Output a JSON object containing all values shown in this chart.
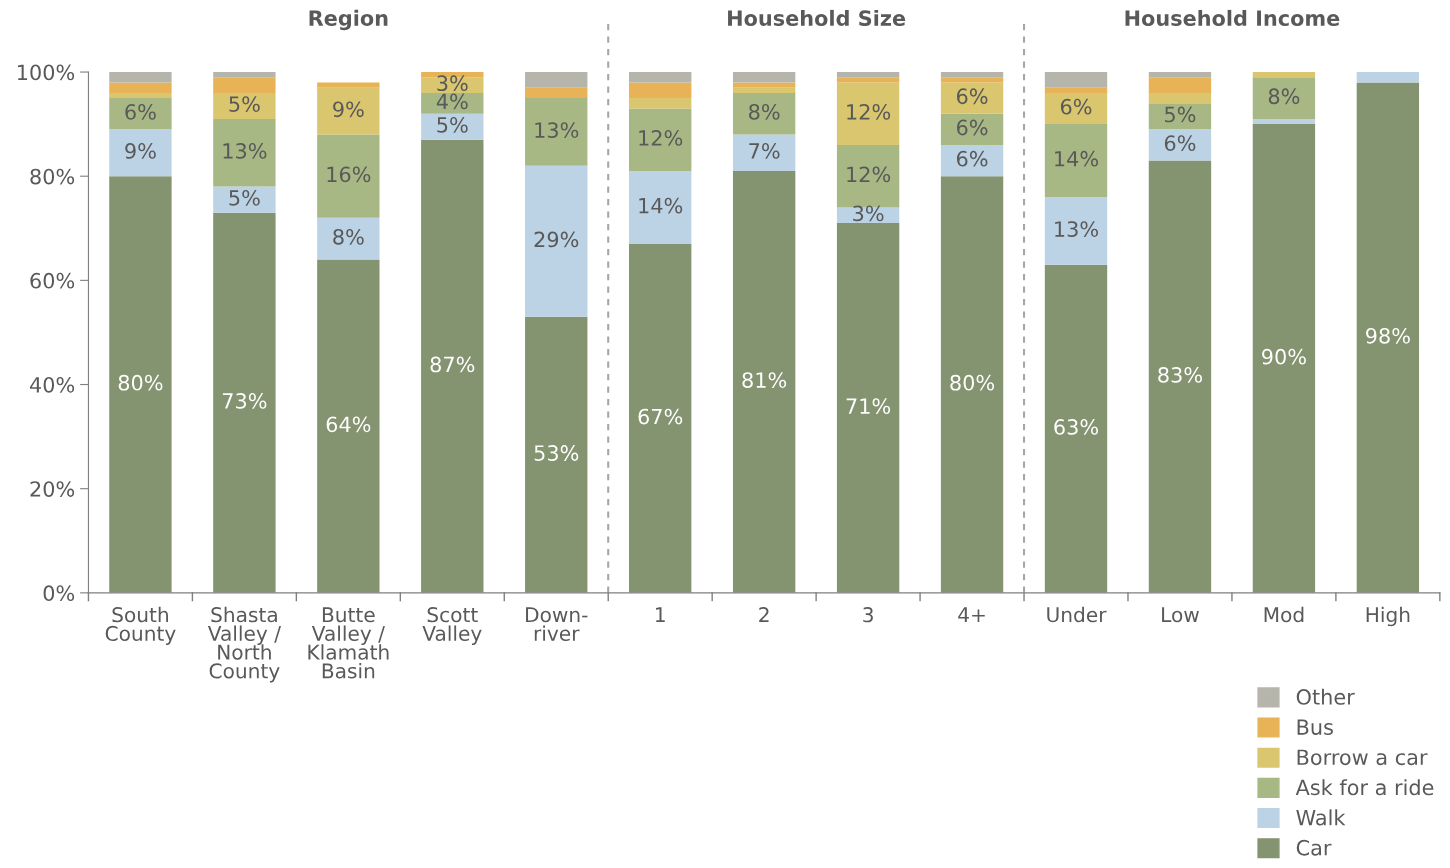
{
  "chart_data": {
    "type": "bar",
    "stacked": true,
    "categories": [
      "South\nCounty",
      "Shasta\nValley /\nNorth\nCounty",
      "Butte\nValley /\nKlamath\nBasin",
      "Scott\nValley",
      "Down-\nriver",
      "1",
      "2",
      "3",
      "4+",
      "Under",
      "Low",
      "Mod",
      "High"
    ],
    "series": [
      {
        "name": "Car",
        "color": "#849370",
        "values": [
          80,
          73,
          64,
          87,
          53,
          67,
          81,
          71,
          80,
          63,
          83,
          90,
          98
        ],
        "value_labels": [
          "80%",
          "73%",
          "64%",
          "87%",
          "53%",
          "67%",
          "81%",
          "71%",
          "80%",
          "63%",
          "83%",
          "90%",
          "98%"
        ]
      },
      {
        "name": "Walk",
        "color": "#bcd3e6",
        "values": [
          9,
          5,
          8,
          5,
          29,
          14,
          7,
          3,
          6,
          13,
          6,
          1,
          2
        ],
        "value_labels": [
          "9%",
          "5%",
          "8%",
          "5%",
          "29%",
          "14%",
          "7%",
          "3%",
          "6%",
          "13%",
          "6%",
          null,
          null
        ]
      },
      {
        "name": "Ask for a ride",
        "color": "#a8b884",
        "values": [
          6,
          13,
          16,
          4,
          13,
          12,
          8,
          12,
          6,
          14,
          5,
          8,
          0
        ],
        "value_labels": [
          "6%",
          "13%",
          "16%",
          "4%",
          "13%",
          "12%",
          "8%",
          "12%",
          "6%",
          "14%",
          "5%",
          "8%",
          null
        ]
      },
      {
        "name": "Borrow a car",
        "color": "#d9c66e",
        "values": [
          1,
          5,
          9,
          3,
          0,
          2,
          1,
          12,
          6,
          6,
          2,
          1,
          0
        ],
        "value_labels": [
          null,
          "5%",
          "9%",
          "3%",
          null,
          null,
          null,
          "12%",
          "6%",
          "6%",
          null,
          null,
          null
        ]
      },
      {
        "name": "Bus",
        "color": "#e8b356",
        "values": [
          2,
          3,
          1,
          1,
          2,
          3,
          1,
          1,
          1,
          1,
          3,
          0,
          0
        ]
      },
      {
        "name": "Other",
        "color": "#b6b5ab",
        "values": [
          2,
          1,
          0,
          0,
          3,
          2,
          2,
          1,
          1,
          3,
          1,
          0,
          0
        ]
      }
    ],
    "ylim": [
      0,
      100
    ],
    "yticks": [
      {
        "value": 0,
        "label": "0%"
      },
      {
        "value": 20,
        "label": "20%"
      },
      {
        "value": 40,
        "label": "40%"
      },
      {
        "value": 60,
        "label": "60%"
      },
      {
        "value": 80,
        "label": "80%"
      },
      {
        "value": 100,
        "label": "100%"
      }
    ],
    "annotations": [
      "Region",
      "Household Size",
      "Household Income"
    ],
    "grid": false,
    "legend": "bottom right"
  }
}
